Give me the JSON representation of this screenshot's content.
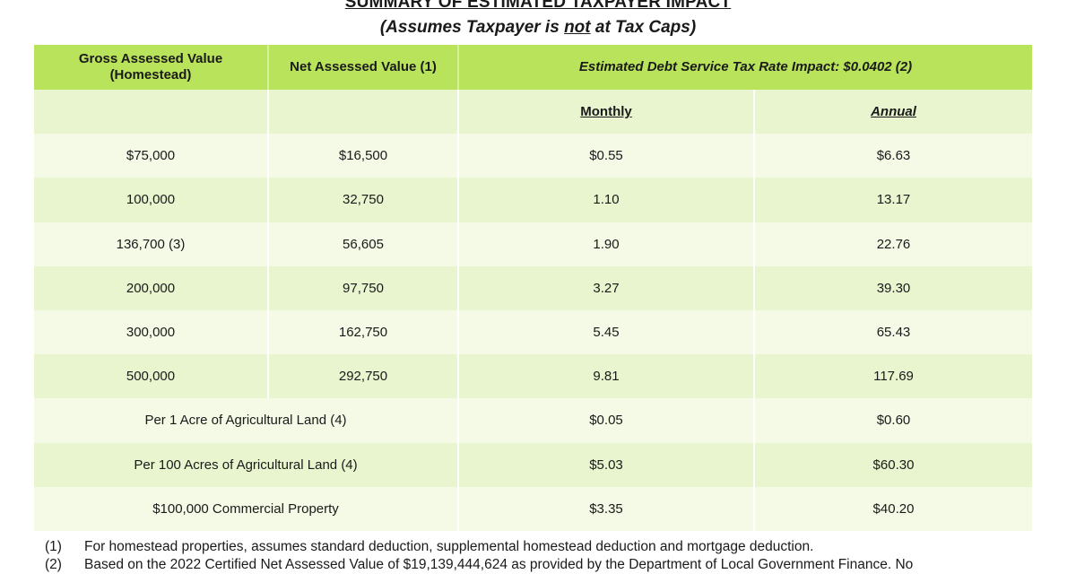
{
  "title": "SUMMARY OF ESTIMATED TAXPAYER IMPACT",
  "subtitle": {
    "before": "(Assumes Taxpayer is ",
    "emph": "not",
    "after": " at Tax Caps)"
  },
  "header": {
    "col1": "Gross Assessed Value (Homestead)",
    "col2": "Net Assessed Value (1)",
    "col34": "Estimated Debt Service Tax Rate Impact: $0.0402 (2)"
  },
  "subheader": {
    "monthly": "Monthly",
    "annual": "Annual"
  },
  "rows": [
    {
      "gross": "$75,000",
      "net": "$16,500",
      "monthly": "$0.55",
      "annual": "$6.63"
    },
    {
      "gross": "100,000",
      "net": "32,750",
      "monthly": "1.10",
      "annual": "13.17"
    },
    {
      "gross": "136,700 (3)",
      "net": "56,605",
      "monthly": "1.90",
      "annual": "22.76"
    },
    {
      "gross": "200,000",
      "net": "97,750",
      "monthly": "3.27",
      "annual": "39.30"
    },
    {
      "gross": "300,000",
      "net": "162,750",
      "monthly": "5.45",
      "annual": "65.43"
    },
    {
      "gross": "500,000",
      "net": "292,750",
      "monthly": "9.81",
      "annual": "117.69"
    }
  ],
  "merged_rows": [
    {
      "label": "Per 1 Acre of Agricultural Land (4)",
      "monthly": "$0.05",
      "annual": "$0.60"
    },
    {
      "label": "Per 100 Acres of Agricultural Land (4)",
      "monthly": "$5.03",
      "annual": "$60.30"
    },
    {
      "label": "$100,000 Commercial Property",
      "monthly": "$3.35",
      "annual": "$40.20"
    }
  ],
  "notes": [
    {
      "num": "(1)",
      "text": "For homestead properties, assumes standard deduction, supplemental homestead deduction and mortgage deduction."
    },
    {
      "num": "(2)",
      "text": "Based on the 2022 Certified Net Assessed Value of $19,139,444,624 as provided by the Department of Local Government Finance. No"
    }
  ]
}
